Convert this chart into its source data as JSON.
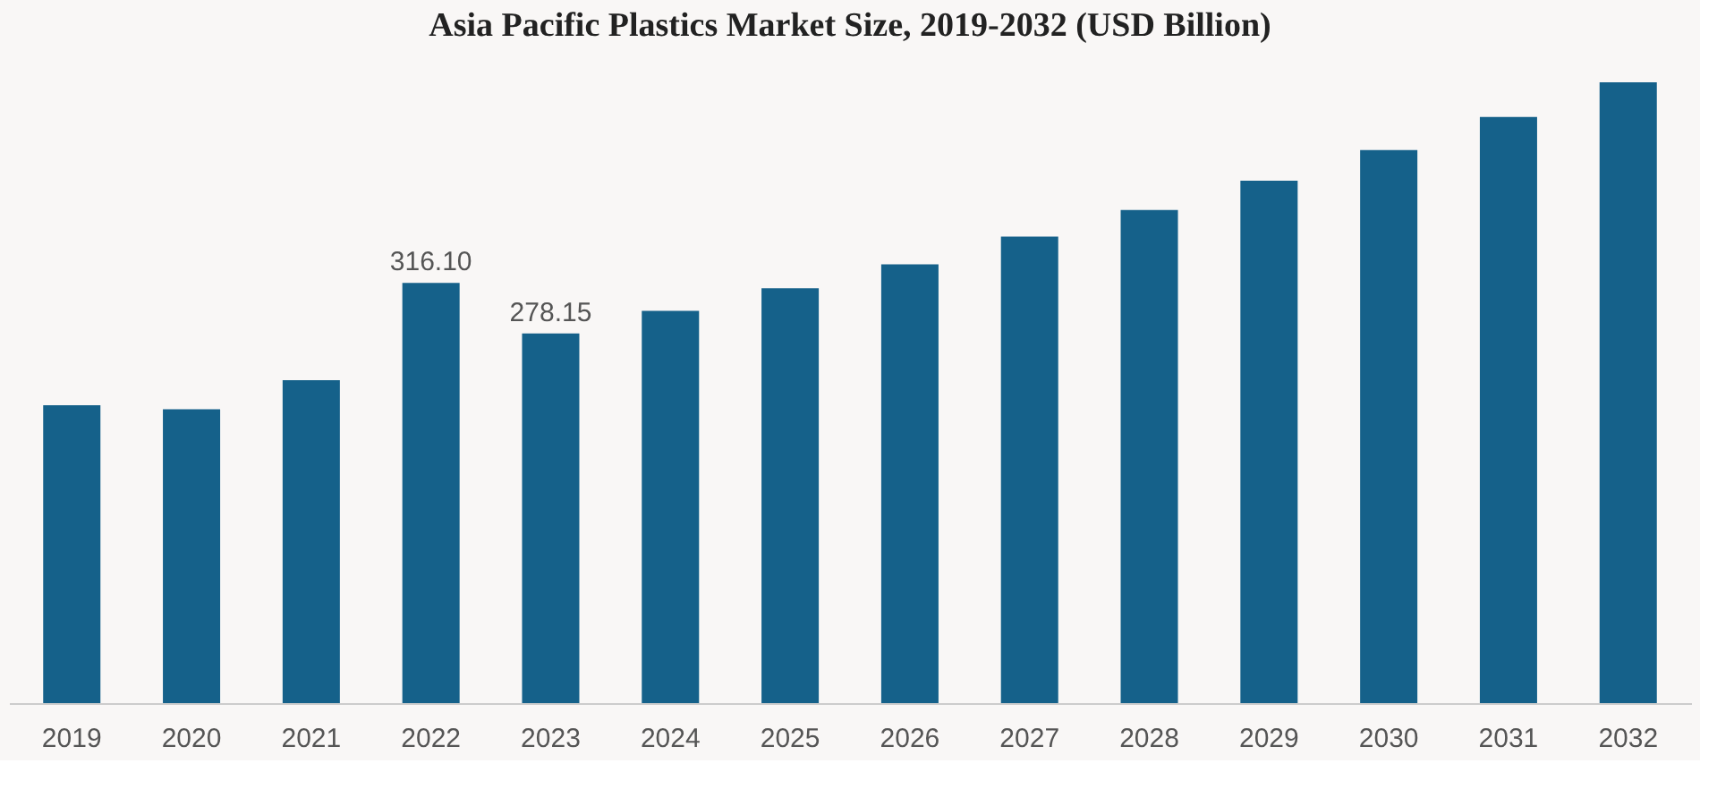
{
  "chart_data": {
    "type": "bar",
    "title": "Asia Pacific Plastics Market Size, 2019-2032 (USD Billion)",
    "categories": [
      "2019",
      "2020",
      "2021",
      "2022",
      "2023",
      "2024",
      "2025",
      "2026",
      "2027",
      "2028",
      "2029",
      "2030",
      "2031",
      "2032"
    ],
    "values": [
      224,
      221,
      243,
      316.1,
      278.15,
      295,
      312,
      330,
      351,
      371,
      393,
      416,
      441,
      467
    ],
    "value_labels": [
      null,
      null,
      null,
      "316.10",
      "278.15",
      null,
      null,
      null,
      null,
      null,
      null,
      null,
      null,
      null
    ],
    "color": "#15618a",
    "tick_labels": "x"
  }
}
